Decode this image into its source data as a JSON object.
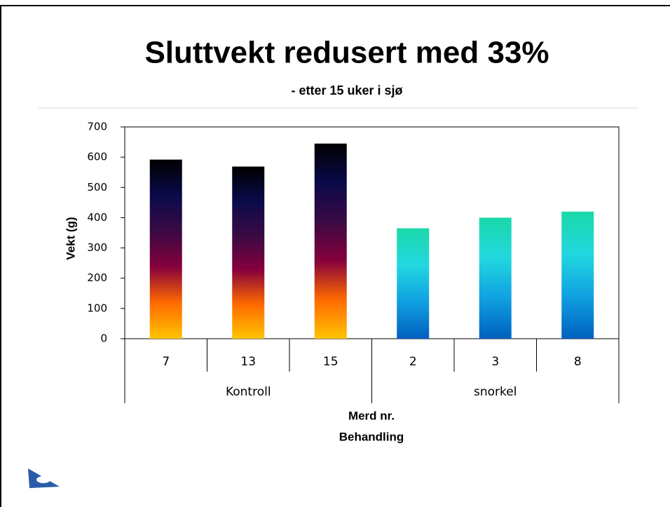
{
  "chart_data": {
    "type": "bar",
    "title": "Sluttvekt redusert med 33%",
    "subtitle": "- etter 15 uker i sjø",
    "y_label": "Vekt (g)",
    "x_labels": [
      "Merd nr.",
      "Behandling"
    ],
    "categories": [
      "7",
      "13",
      "15",
      "2",
      "3",
      "8"
    ],
    "series": [
      {
        "name": "Kontroll",
        "gradient": [
          "#000000",
          "#0a0a4a",
          "#3a0a44",
          "#86003c",
          "#ff6a00",
          "#ffc400"
        ],
        "values": [
          592,
          569,
          645,
          null,
          null,
          null
        ]
      },
      {
        "name": "snorkel",
        "gradient": [
          "#1ad8a8",
          "#22d8e0",
          "#10a0e0",
          "#0060c0"
        ],
        "values": [
          null,
          null,
          null,
          365,
          400,
          420
        ]
      }
    ],
    "ylim": [
      0,
      700
    ],
    "yticks": [
      0,
      100,
      200,
      300,
      400,
      500,
      600,
      700
    ]
  }
}
